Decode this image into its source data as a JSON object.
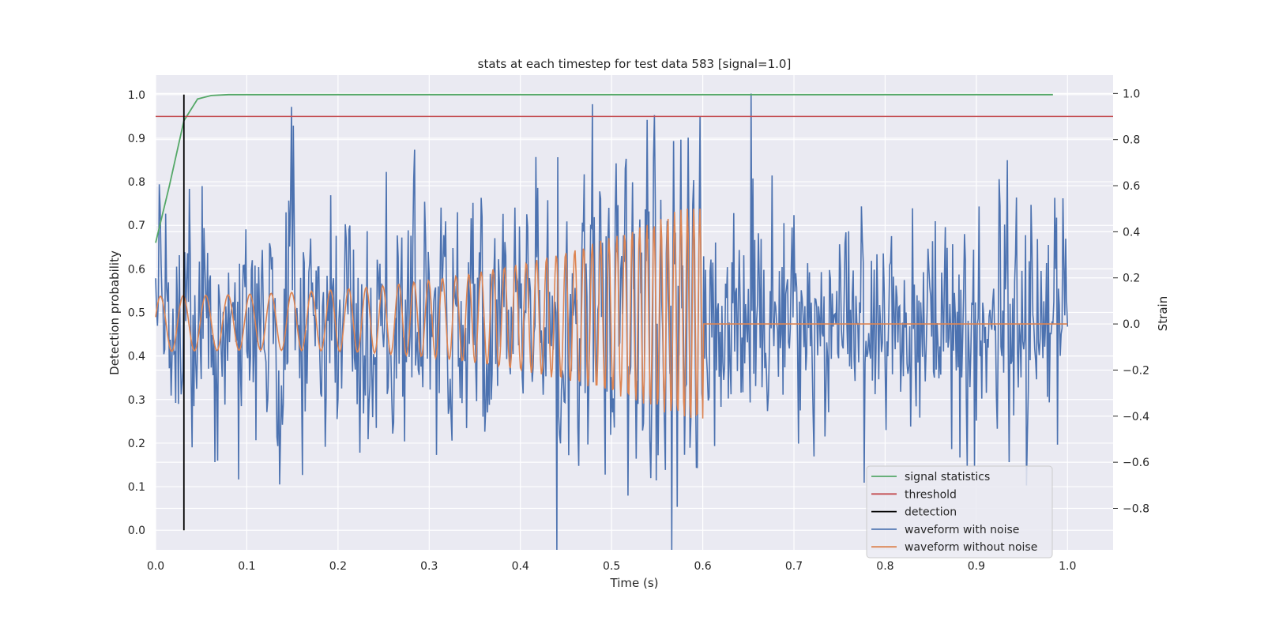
{
  "chart_data": {
    "type": "line",
    "title": "stats at each timestep for test data 583 [signal=1.0]",
    "xlabel": "Time (s)",
    "ylabel_left": "Detection probability",
    "ylabel_right": "Strain",
    "xlim": [
      0.0,
      1.05
    ],
    "ylim_left": [
      -0.045,
      1.045
    ],
    "ylim_right": [
      -0.98,
      1.08
    ],
    "x_ticks": [
      "0.0",
      "0.1",
      "0.2",
      "0.3",
      "0.4",
      "0.5",
      "0.6",
      "0.7",
      "0.8",
      "0.9",
      "1.0"
    ],
    "y_ticks_left": [
      "0.0",
      "0.1",
      "0.2",
      "0.3",
      "0.4",
      "0.5",
      "0.6",
      "0.7",
      "0.8",
      "0.9",
      "1.0"
    ],
    "y_ticks_right": [
      "−0.8",
      "−0.6",
      "−0.4",
      "−0.2",
      "0.0",
      "0.2",
      "0.4",
      "0.6",
      "0.8",
      "1.0"
    ],
    "grid": true,
    "legend_position": "bottom-right",
    "colors": {
      "signal_statistics": "#55a868",
      "threshold": "#c44e52",
      "detection": "#000000",
      "waveform_with_noise": "#4c72b0",
      "waveform_without_noise": "#dd8452",
      "background": "#eaeaf2",
      "grid": "#ffffff"
    },
    "legend": [
      {
        "label": "signal statistics",
        "color": "#55a868"
      },
      {
        "label": "threshold",
        "color": "#c44e52"
      },
      {
        "label": "detection",
        "color": "#000000"
      },
      {
        "label": "waveform with noise",
        "color": "#4c72b0"
      },
      {
        "label": "waveform without noise",
        "color": "#dd8452"
      }
    ],
    "series": [
      {
        "name": "signal statistics",
        "axis": "left",
        "x": [
          0.0,
          0.015,
          0.031,
          0.046,
          0.061,
          0.08,
          0.2,
          0.4,
          0.6,
          0.8,
          0.984
        ],
        "y": [
          0.66,
          0.79,
          0.94,
          0.99,
          0.998,
          1.0,
          1.0,
          1.0,
          1.0,
          1.0,
          1.0
        ]
      },
      {
        "name": "threshold",
        "axis": "left",
        "x": [
          0.0,
          1.05
        ],
        "y": [
          0.95,
          0.95
        ]
      },
      {
        "name": "detection",
        "axis": "left",
        "x": [
          0.031,
          0.031
        ],
        "y": [
          0.0,
          1.0
        ]
      },
      {
        "name": "waveform without noise",
        "axis": "right",
        "samples": "t in [0, 1.0], step 0.001",
        "model": "chirp: amplitude 0.12 rising to 0.50 and frequency 40 Hz rising to 150 Hz until t = 0.6 s, then 0.0 to t = 1.0 s",
        "y_range_before_0_6": [
          -0.41,
          0.5
        ],
        "y_after_0_6": 0.0
      },
      {
        "name": "waveform with noise",
        "axis": "right",
        "samples": "t in [0, 1.0], step 0.001",
        "model": "waveform without noise plus random noise, standard deviation about 0.25",
        "y_range": [
          -0.98,
          1.0
        ],
        "peak": {
          "x": 0.653,
          "y": 1.0
        }
      }
    ]
  }
}
